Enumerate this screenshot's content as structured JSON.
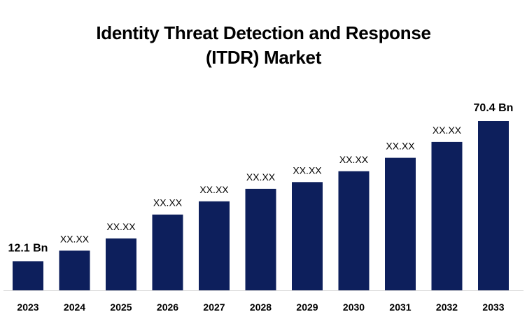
{
  "chart_data": {
    "type": "bar",
    "title_lines": [
      "Identity Threat Detection and Response",
      "(ITDR) Market"
    ],
    "categories": [
      "2023",
      "2024",
      "2025",
      "2026",
      "2027",
      "2028",
      "2029",
      "2030",
      "2031",
      "2032",
      "2033"
    ],
    "values": [
      12.1,
      16.5,
      21.6,
      31.5,
      37.0,
      42.2,
      45.0,
      49.5,
      55.1,
      61.7,
      70.4
    ],
    "data_labels": [
      "12.1 Bn",
      "XX.XX",
      "XX.XX",
      "XX.XX",
      "XX.XX",
      "XX.XX",
      "XX.XX",
      "XX.XX",
      "XX.XX",
      "XX.XX",
      "70.4 Bn"
    ],
    "bar_color": "#0d1f5c",
    "axis_color": "#d9d9d9",
    "xlabel": "",
    "ylabel": "",
    "ylim": [
      0,
      70.4
    ],
    "grid": false,
    "legend": "none"
  }
}
